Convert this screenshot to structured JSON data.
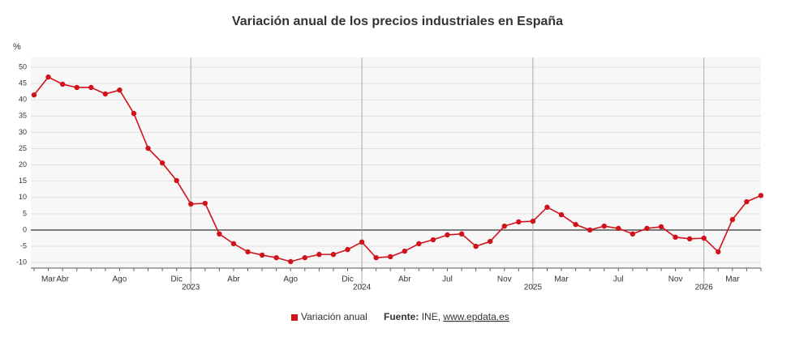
{
  "chart_data": {
    "type": "line",
    "title": "Variación anual de los precios industriales en España",
    "y_label": "%",
    "categories": [
      null,
      "Mar",
      "Abr",
      null,
      null,
      null,
      "Ago",
      null,
      null,
      null,
      "Dic",
      "2023",
      null,
      null,
      "Abr",
      null,
      null,
      null,
      "Ago",
      null,
      null,
      null,
      "Dic",
      "2024",
      null,
      null,
      "Abr",
      null,
      null,
      "Jul",
      null,
      null,
      null,
      "Nov",
      null,
      "2025",
      null,
      "Mar",
      null,
      null,
      null,
      "Jul",
      null,
      null,
      null,
      "Nov",
      null,
      "2026",
      null,
      "Mar",
      null,
      null
    ],
    "series": [
      {
        "name": "Variación anual",
        "color": "#d0121b",
        "values": [
          41.5,
          47.0,
          44.8,
          43.8,
          43.8,
          41.8,
          43.0,
          35.8,
          25.1,
          20.6,
          15.2,
          8.0,
          8.2,
          -1.2,
          -4.2,
          -6.7,
          -7.7,
          -8.5,
          -9.7,
          -8.5,
          -7.5,
          -7.5,
          -6.0,
          -3.7,
          -8.5,
          -8.2,
          -6.5,
          -4.2,
          -3.0,
          -1.5,
          -1.2,
          -5.0,
          -3.5,
          1.2,
          2.5,
          2.7,
          7.0,
          4.7,
          1.7,
          0.0,
          1.2,
          0.5,
          -1.2,
          0.5,
          1.0,
          -2.2,
          -2.7,
          -2.5,
          -6.7,
          3.2,
          8.7,
          10.6
        ]
      }
    ],
    "ylim": [
      -11.7,
      53
    ],
    "yticks": [
      -10,
      -5,
      0,
      5,
      10,
      15,
      20,
      25,
      30,
      35,
      40,
      45,
      50
    ],
    "grid": true,
    "legend": "bottom",
    "source_label": "Fuente:",
    "source_name": "INE,",
    "source_link": "www.epdata.es"
  }
}
